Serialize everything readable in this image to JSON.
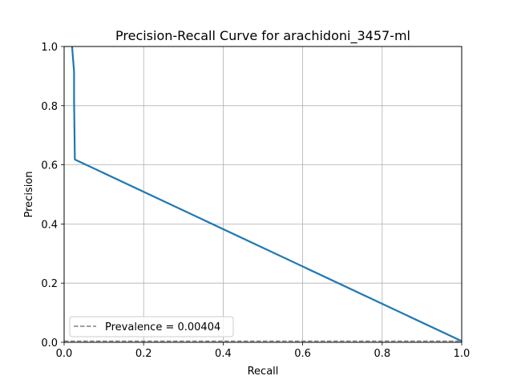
{
  "chart_data": {
    "type": "line",
    "title": "Precision-Recall Curve for arachidoni_3457-ml",
    "xlabel": "Recall",
    "ylabel": "Precision",
    "xlim": [
      0.0,
      1.0
    ],
    "ylim": [
      0.0,
      1.0
    ],
    "xticks": [
      "0.0",
      "0.2",
      "0.4",
      "0.6",
      "0.8",
      "1.0"
    ],
    "yticks": [
      "0.0",
      "0.2",
      "0.4",
      "0.6",
      "0.8",
      "1.0"
    ],
    "grid": true,
    "legend_position": "lower-left",
    "series": [
      {
        "color": "#1f77b4",
        "style": "solid",
        "x": [
          0.02,
          0.025,
          0.025,
          0.027,
          1.0
        ],
        "y": [
          1.0,
          0.915,
          0.82,
          0.618,
          0.004
        ]
      },
      {
        "name": "Prevalence = 0.00404",
        "color": "#808080",
        "style": "dashed",
        "x": [
          0.0,
          1.0
        ],
        "y": [
          0.00404,
          0.00404
        ]
      }
    ]
  }
}
